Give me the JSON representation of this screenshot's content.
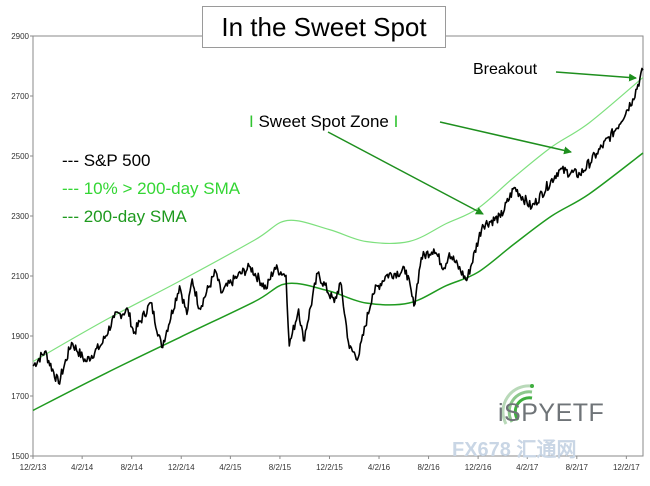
{
  "chart_data": {
    "type": "line",
    "title": "In the Sweet Spot",
    "ylim": [
      1500,
      2900
    ],
    "y_ticks": [
      1500,
      1700,
      1900,
      2100,
      2300,
      2500,
      2700,
      2900
    ],
    "x_ticks": [
      "12/2/13",
      "4/2/14",
      "8/2/14",
      "12/2/14",
      "4/2/15",
      "8/2/15",
      "12/2/15",
      "4/2/16",
      "8/2/16",
      "12/2/16",
      "4/2/17",
      "8/2/17",
      "12/2/17"
    ],
    "x_range": [
      "2013-12-02",
      "2018-01-12"
    ],
    "grid": false,
    "legend_position": "left",
    "series": [
      {
        "name": "S&P 500",
        "legend_label": "--- S&P 500",
        "color": "#000000",
        "points": [
          [
            "2013-12-02",
            1800
          ],
          [
            "2013-12-31",
            1848
          ],
          [
            "2014-02-03",
            1742
          ],
          [
            "2014-03-07",
            1878
          ],
          [
            "2014-04-11",
            1815
          ],
          [
            "2014-05-20",
            1872
          ],
          [
            "2014-06-20",
            1962
          ],
          [
            "2014-07-24",
            1987
          ],
          [
            "2014-08-07",
            1909
          ],
          [
            "2014-09-18",
            2011
          ],
          [
            "2014-10-15",
            1862
          ],
          [
            "2014-11-28",
            2067
          ],
          [
            "2014-12-16",
            1972
          ],
          [
            "2014-12-29",
            2090
          ],
          [
            "2015-01-16",
            1992
          ],
          [
            "2015-02-25",
            2115
          ],
          [
            "2015-03-10",
            2044
          ],
          [
            "2015-04-20",
            2100
          ],
          [
            "2015-05-21",
            2130
          ],
          [
            "2015-06-29",
            2057
          ],
          [
            "2015-07-20",
            2128
          ],
          [
            "2015-08-17",
            2102
          ],
          [
            "2015-08-25",
            1867
          ],
          [
            "2015-09-17",
            1990
          ],
          [
            "2015-09-29",
            1884
          ],
          [
            "2015-11-03",
            2109
          ],
          [
            "2015-12-14",
            2012
          ],
          [
            "2015-12-29",
            2078
          ],
          [
            "2016-01-20",
            1859
          ],
          [
            "2016-02-11",
            1829
          ],
          [
            "2016-03-17",
            2040
          ],
          [
            "2016-04-20",
            2102
          ],
          [
            "2016-06-08",
            2119
          ],
          [
            "2016-06-27",
            2000
          ],
          [
            "2016-07-15",
            2161
          ],
          [
            "2016-08-15",
            2190
          ],
          [
            "2016-09-09",
            2127
          ],
          [
            "2016-09-22",
            2177
          ],
          [
            "2016-11-04",
            2085
          ],
          [
            "2016-12-13",
            2271
          ],
          [
            "2017-01-26",
            2296
          ],
          [
            "2017-03-01",
            2395
          ],
          [
            "2017-04-13",
            2328
          ],
          [
            "2017-06-19",
            2453
          ],
          [
            "2017-08-10",
            2438
          ],
          [
            "2017-09-20",
            2508
          ],
          [
            "2017-11-07",
            2591
          ],
          [
            "2017-12-18",
            2690
          ],
          [
            "2018-01-12",
            2786
          ]
        ]
      },
      {
        "name": "10% > 200-day SMA",
        "legend_label": "--- 10% > 200-day SMA",
        "color": "#7ee07e",
        "points": [
          [
            "2013-12-02",
            1815
          ],
          [
            "2014-06-01",
            1955
          ],
          [
            "2014-12-01",
            2085
          ],
          [
            "2015-06-01",
            2220
          ],
          [
            "2015-08-20",
            2285
          ],
          [
            "2015-12-01",
            2255
          ],
          [
            "2016-03-01",
            2215
          ],
          [
            "2016-06-15",
            2215
          ],
          [
            "2016-09-15",
            2275
          ],
          [
            "2016-12-01",
            2325
          ],
          [
            "2017-03-01",
            2430
          ],
          [
            "2017-06-01",
            2530
          ],
          [
            "2017-09-01",
            2610
          ],
          [
            "2018-01-12",
            2762
          ]
        ]
      },
      {
        "name": "200-day SMA",
        "legend_label": "--- 200-day SMA",
        "color": "#1f9a1f",
        "points": [
          [
            "2013-12-02",
            1652
          ],
          [
            "2014-06-01",
            1777
          ],
          [
            "2014-12-01",
            1897
          ],
          [
            "2015-06-01",
            2015
          ],
          [
            "2015-08-20",
            2075
          ],
          [
            "2015-12-01",
            2050
          ],
          [
            "2016-03-01",
            2010
          ],
          [
            "2016-06-15",
            2010
          ],
          [
            "2016-09-15",
            2068
          ],
          [
            "2016-12-01",
            2112
          ],
          [
            "2017-03-01",
            2207
          ],
          [
            "2017-06-01",
            2300
          ],
          [
            "2017-09-01",
            2373
          ],
          [
            "2018-01-12",
            2510
          ]
        ]
      }
    ],
    "annotations": {
      "breakout": "Breakout",
      "zone_bar_left": "I",
      "zone_text": "Sweet Spot Zone",
      "zone_bar_right": "I"
    },
    "annotation_color_bars": "#31c431",
    "arrow_color": "#1e8f1e"
  },
  "logo": {
    "text": "iSPYETF",
    "icon": "radar-swoosh-icon",
    "color": "#6f7478",
    "accent": "#3fae3f"
  },
  "watermark": {
    "text": "FX678 汇通网"
  }
}
